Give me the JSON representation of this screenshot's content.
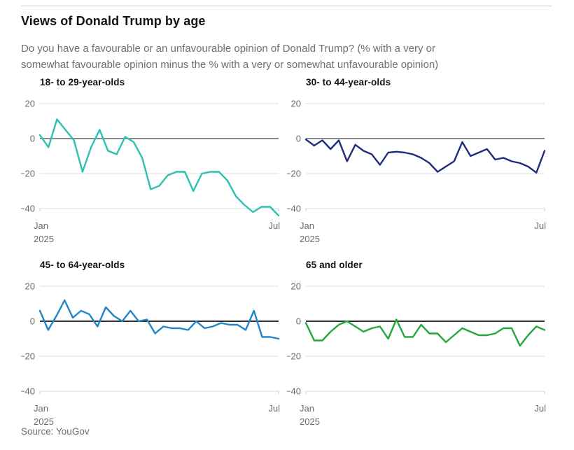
{
  "header": {
    "title": "Views of Donald Trump by age",
    "subtitle_lines": [
      "Do you have a favourable or an unfavourable opinion of Donald Trump? (% with a very or",
      "somewhat favourable opinion minus the % with a very or somewhat unfavourable opinion)"
    ]
  },
  "source": {
    "label": "Source: YouGov"
  },
  "axis": {
    "y_ticks": [
      {
        "label": "20",
        "value": 20
      },
      {
        "label": "0",
        "value": 0
      },
      {
        "label": "−20",
        "value": -20
      },
      {
        "label": "−40",
        "value": -40
      }
    ],
    "ylim": [
      -45,
      20
    ],
    "x_start_label": "Jan",
    "x_start_sublabel": "2025",
    "x_end_label": "Jul",
    "grid_color": "#dcdcdc",
    "tick_color": "#c8c8c8",
    "tick_label_color": "#6b6b6b",
    "grid_on": true
  },
  "chart_data": [
    {
      "type": "line",
      "title": "18- to 29-year-olds",
      "color": "#2ec1b2",
      "zero_line_color": "#77787b",
      "x_range": [
        "Jan 2025",
        "Jul 2025"
      ],
      "values": [
        2,
        -5,
        11,
        5,
        -1,
        -19,
        -5,
        5,
        -7,
        -9,
        1,
        -2,
        -11,
        -29,
        -27,
        -21,
        -19,
        -19,
        -30,
        -20,
        -19,
        -19,
        -24,
        -33,
        -38,
        -42,
        -39,
        -39,
        -44
      ]
    },
    {
      "type": "line",
      "title": "30- to 44-year-olds",
      "color": "#1e2d7d",
      "zero_line_color": "#77787b",
      "x_range": [
        "Jan 2025",
        "Jul 2025"
      ],
      "values": [
        -0.5,
        -4,
        -1,
        -6,
        -1,
        -13,
        -3.5,
        -7,
        -9,
        -15,
        -8,
        -7.5,
        -8,
        -9,
        -11,
        -14,
        -19,
        -16,
        -13,
        -2,
        -10,
        -8,
        -6,
        -12,
        -11,
        -13,
        -14,
        -16,
        -19.5,
        -7
      ]
    },
    {
      "type": "line",
      "title": "45- to 64-year-olds",
      "color": "#2086c7",
      "zero_line_color": "#121212",
      "x_range": [
        "Jan 2025",
        "Jul 2025"
      ],
      "values": [
        6,
        -5,
        3,
        12,
        2,
        6,
        4,
        -3,
        8,
        3,
        0,
        6,
        0,
        1,
        -7,
        -3,
        -4,
        -4,
        -5,
        0,
        -4,
        -3,
        -1,
        -2,
        -2,
        -5,
        6,
        -9,
        -9,
        -10
      ]
    },
    {
      "type": "line",
      "title": "65 and older",
      "color": "#24a83e",
      "zero_line_color": "#121212",
      "x_range": [
        "Jan 2025",
        "Jul 2025"
      ],
      "values": [
        -1,
        -11,
        -11,
        -6,
        -2,
        0,
        -3,
        -6,
        -4,
        -3,
        -10,
        1,
        -9,
        -9,
        -2,
        -7,
        -7,
        -12,
        -8,
        -4,
        -6,
        -8,
        -8,
        -7,
        -4,
        -4,
        -14,
        -8,
        -3,
        -5
      ]
    }
  ]
}
